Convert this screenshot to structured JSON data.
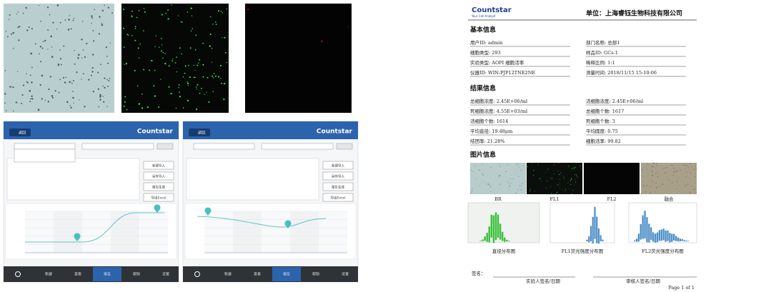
{
  "apps": [
    {
      "back": "返回",
      "logo": "Countstar",
      "buttons": [
        "新建导入",
        "另存导入",
        "报告生成",
        "导出Excel"
      ],
      "nav": [
        "新建",
        "查看",
        "报告",
        "帮助",
        "设置"
      ]
    },
    {
      "back": "返回",
      "logo": "Countstar",
      "buttons": [
        "新建导入",
        "另存导入",
        "报告生成",
        "导出Excel"
      ],
      "nav": [
        "新建",
        "查看",
        "报告",
        "帮助",
        "设置"
      ]
    }
  ],
  "report": {
    "logo": "Countstar",
    "slogan": "Your Cell Analyst",
    "unit": "单位：上海睿钰生物科技有限公司",
    "basic_title": "基本信息",
    "basic": [
      [
        "用户ID: admin",
        "部门名称: 总部1"
      ],
      [
        "细胞类型: 293",
        "样品ID: GCs-1"
      ],
      [
        "实验类型: AOPI 细胞活率",
        "稀释比例: 1:1"
      ],
      [
        "仪器ID: WIN-PJP12TNE2NE",
        "测量时间: 2018/11/15 15:10:06"
      ]
    ],
    "result_title": "结果信息",
    "results": [
      [
        "总细胞浓度: 2.45E+06/ml",
        "活细胞浓度: 2.45E+06/ml"
      ],
      [
        "死细胞浓度: 4.55E+03/ml",
        "总细胞个数: 1617"
      ],
      [
        "活细胞个数: 1614",
        "死细胞个数: 3"
      ],
      [
        "平均直径: 19.48μm",
        "平均圆度: 0.75"
      ],
      [
        "结团率: 21.28%",
        "细胞活率: 99.82"
      ]
    ],
    "image_title": "图片信息",
    "image_labels": [
      "BR",
      "FL1",
      "FL2",
      "融合"
    ],
    "chart_labels": [
      "直径分布图",
      "FL1荧光强度分布图",
      "FL2荧光强度分布图"
    ],
    "sign": "签名：",
    "sign_labels": [
      "实验人签名/日期",
      "审核人签名/日期"
    ],
    "page": "Page 1 of 1"
  }
}
